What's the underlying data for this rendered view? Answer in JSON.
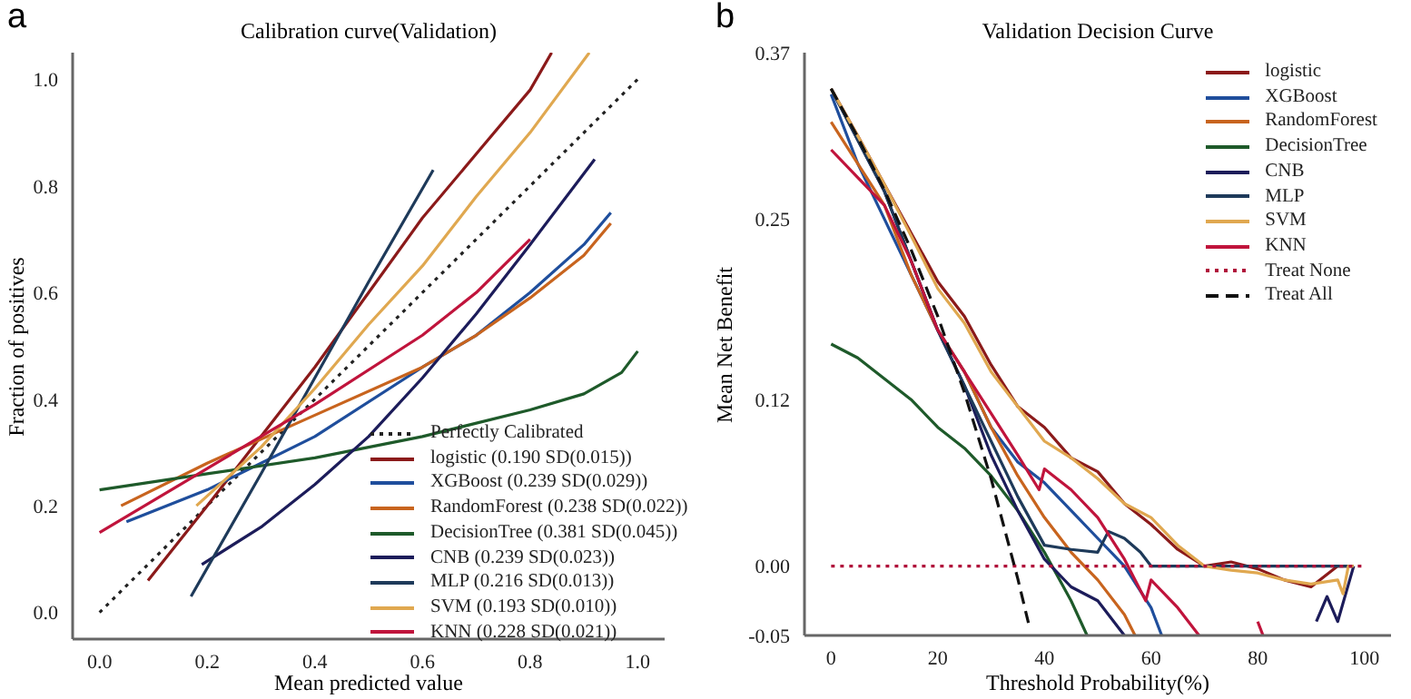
{
  "chart_data": [
    {
      "type": "line",
      "title": "Calibration curve(Validation)",
      "xlabel": "Mean predicted value",
      "ylabel": "Fraction of positives",
      "annotations": [
        "a"
      ],
      "xlim": [
        -0.05,
        1.05
      ],
      "ylim": [
        -0.05,
        1.05
      ],
      "xticks": [
        {
          "value": 0,
          "label": "0.0"
        },
        {
          "value": 0.2,
          "label": "0.2"
        },
        {
          "value": 0.4,
          "label": "0.4"
        },
        {
          "value": 0.6,
          "label": "0.6"
        },
        {
          "value": 0.8,
          "label": "0.8"
        },
        {
          "value": 1,
          "label": "1.0"
        }
      ],
      "yticks": [
        {
          "value": 0,
          "label": "0.0"
        },
        {
          "value": 0.2,
          "label": "0.2"
        },
        {
          "value": 0.4,
          "label": "0.4"
        },
        {
          "value": 0.6,
          "label": "0.6"
        },
        {
          "value": 0.8,
          "label": "0.8"
        },
        {
          "value": 1,
          "label": "1.0"
        }
      ],
      "legend": "bottom right",
      "series": [
        {
          "name": "Perfectly Calibrated",
          "color": "#222222",
          "line_style": "dotted",
          "x": [
            0,
            1
          ],
          "values": [
            0,
            1
          ]
        },
        {
          "name": "logistic (0.190 SD(0.015))",
          "color": "#8b1a1a",
          "x": [
            0.09,
            0.2,
            0.3,
            0.4,
            0.5,
            0.6,
            0.7,
            0.8,
            0.84
          ],
          "values": [
            0.06,
            0.2,
            0.33,
            0.46,
            0.6,
            0.74,
            0.86,
            0.98,
            1.05
          ]
        },
        {
          "name": "XGBoost (0.239 SD(0.029))",
          "color": "#1f4e9c",
          "x": [
            0.05,
            0.2,
            0.4,
            0.6,
            0.7,
            0.8,
            0.9,
            0.95
          ],
          "values": [
            0.17,
            0.23,
            0.33,
            0.46,
            0.52,
            0.6,
            0.69,
            0.75
          ]
        },
        {
          "name": "RandomForest (0.238 SD(0.022))",
          "color": "#c8641e",
          "x": [
            0.04,
            0.2,
            0.4,
            0.6,
            0.7,
            0.8,
            0.9,
            0.95
          ],
          "values": [
            0.2,
            0.28,
            0.37,
            0.46,
            0.52,
            0.59,
            0.67,
            0.73
          ]
        },
        {
          "name": "DecisionTree (0.381 SD(0.045))",
          "color": "#1e5a2a",
          "x": [
            0,
            0.2,
            0.4,
            0.6,
            0.8,
            0.9,
            0.97,
            1.0
          ],
          "values": [
            0.23,
            0.26,
            0.29,
            0.33,
            0.38,
            0.41,
            0.45,
            0.49
          ]
        },
        {
          "name": "CNB (0.239 SD(0.023))",
          "color": "#1c1c5a",
          "x": [
            0.19,
            0.3,
            0.4,
            0.5,
            0.6,
            0.7,
            0.8,
            0.92
          ],
          "values": [
            0.09,
            0.16,
            0.24,
            0.33,
            0.44,
            0.56,
            0.69,
            0.85
          ]
        },
        {
          "name": "MLP (0.216 SD(0.013))",
          "color": "#1e3a5a",
          "x": [
            0.17,
            0.3,
            0.4,
            0.5,
            0.62
          ],
          "values": [
            0.03,
            0.26,
            0.44,
            0.62,
            0.83
          ]
        },
        {
          "name": "SVM (0.193 SD(0.010))",
          "color": "#e0a850",
          "x": [
            0.18,
            0.3,
            0.4,
            0.5,
            0.6,
            0.7,
            0.8,
            0.91
          ],
          "values": [
            0.2,
            0.31,
            0.42,
            0.54,
            0.65,
            0.78,
            0.9,
            1.05
          ]
        },
        {
          "name": "KNN (0.228 SD(0.021))",
          "color": "#c0143c",
          "x": [
            0,
            0.2,
            0.4,
            0.6,
            0.7,
            0.8
          ],
          "values": [
            0.15,
            0.27,
            0.39,
            0.52,
            0.6,
            0.7
          ]
        }
      ]
    },
    {
      "type": "line",
      "title": "Validation Decision Curve",
      "xlabel": "Threshold Probability(%)",
      "ylabel": "Mean Net Benefit",
      "annotations": [
        "b"
      ],
      "xlim": [
        -5,
        105
      ],
      "ylim": [
        -0.05,
        0.37
      ],
      "xticks": [
        0,
        20,
        40,
        60,
        80,
        100
      ],
      "yticks": [
        -0.05,
        {
          "value": 0,
          "label": "0.00"
        },
        0.12,
        0.25,
        0.37
      ],
      "legend": "top right",
      "series": [
        {
          "name": "logistic",
          "color": "#8b1a1a",
          "x": [
            0,
            5,
            10,
            15,
            20,
            25,
            30,
            35,
            40,
            45,
            50,
            55,
            60,
            65,
            70,
            75,
            80,
            85,
            90,
            95,
            98
          ],
          "values": [
            0.344,
            0.31,
            0.275,
            0.24,
            0.205,
            0.18,
            0.145,
            0.115,
            0.1,
            0.078,
            0.068,
            0.045,
            0.03,
            0.012,
            0,
            0.003,
            -0.002,
            -0.01,
            -0.015,
            0,
            0
          ]
        },
        {
          "name": "XGBoost",
          "color": "#1f4e9c",
          "x": [
            0,
            5,
            10,
            15,
            20,
            25,
            30,
            35,
            40,
            45,
            50,
            55,
            60,
            62
          ],
          "values": [
            0.34,
            0.29,
            0.25,
            0.21,
            0.17,
            0.14,
            0.1,
            0.075,
            0.06,
            0.04,
            0.02,
            0,
            -0.03,
            -0.05
          ]
        },
        {
          "name": "RandomForest",
          "color": "#c8641e",
          "x": [
            0,
            5,
            10,
            15,
            20,
            25,
            30,
            35,
            40,
            45,
            50,
            55,
            57
          ],
          "values": [
            0.32,
            0.29,
            0.26,
            0.21,
            0.17,
            0.14,
            0.1,
            0.065,
            0.035,
            0.01,
            -0.01,
            -0.035,
            -0.05
          ]
        },
        {
          "name": "DecisionTree",
          "color": "#1e5a2a",
          "x": [
            0,
            5,
            10,
            15,
            20,
            25,
            30,
            35,
            40,
            45,
            48
          ],
          "values": [
            0.16,
            0.15,
            0.135,
            0.12,
            0.1,
            0.085,
            0.065,
            0.04,
            0.01,
            -0.025,
            -0.05
          ]
        },
        {
          "name": "CNB",
          "color": "#1c1c5a",
          "x": [
            0,
            10,
            20,
            25,
            30,
            35,
            40,
            45,
            50,
            55,
            60,
            91,
            93,
            95,
            98
          ],
          "values": [
            0.344,
            0.27,
            0.17,
            0.13,
            0.08,
            0.04,
            0.005,
            -0.015,
            -0.025,
            -0.05,
            null,
            -0.04,
            -0.022,
            -0.04,
            0
          ]
        },
        {
          "name": "MLP",
          "color": "#1e3a5a",
          "x": [
            0,
            10,
            20,
            25,
            30,
            35,
            40,
            45,
            50,
            52,
            55,
            58,
            60,
            65,
            70,
            80,
            90,
            98
          ],
          "values": [
            0.344,
            0.27,
            0.17,
            0.13,
            0.09,
            0.05,
            0.015,
            0.012,
            0.01,
            0.025,
            0.02,
            0.01,
            0,
            0,
            0,
            0,
            0,
            0
          ]
        },
        {
          "name": "SVM",
          "color": "#e0a850",
          "x": [
            0,
            5,
            10,
            15,
            20,
            25,
            30,
            35,
            40,
            45,
            50,
            55,
            60,
            65,
            70,
            75,
            80,
            85,
            90,
            95,
            96,
            97,
            98
          ],
          "values": [
            0.344,
            0.31,
            0.275,
            0.238,
            0.2,
            0.175,
            0.14,
            0.115,
            0.09,
            0.078,
            0.063,
            0.045,
            0.035,
            0.015,
            0,
            -0.003,
            -0.005,
            -0.01,
            -0.013,
            -0.01,
            -0.02,
            0,
            0
          ]
        },
        {
          "name": "KNN",
          "color": "#c0143c",
          "x": [
            0,
            5,
            10,
            15,
            20,
            25,
            30,
            35,
            39,
            40,
            45,
            50,
            55,
            59,
            60,
            65,
            69,
            75,
            80,
            81
          ],
          "values": [
            0.3,
            0.28,
            0.26,
            0.22,
            0.17,
            0.14,
            0.11,
            0.08,
            0.055,
            0.07,
            0.055,
            0.035,
            0.005,
            -0.025,
            -0.01,
            -0.03,
            -0.05,
            null,
            -0.04,
            -0.05
          ]
        },
        {
          "name": "Treat None",
          "color": "#b0103a",
          "line_style": "dotted",
          "x": [
            0,
            100
          ],
          "values": [
            0,
            0
          ]
        },
        {
          "name": "Treat All",
          "color": "#111111",
          "line_style": "dashed",
          "x": [
            0,
            5,
            10,
            15,
            20,
            25,
            30,
            35,
            37
          ],
          "values": [
            0.344,
            0.309,
            0.271,
            0.228,
            0.18,
            0.125,
            0.063,
            -0.009,
            -0.041
          ]
        }
      ]
    }
  ]
}
